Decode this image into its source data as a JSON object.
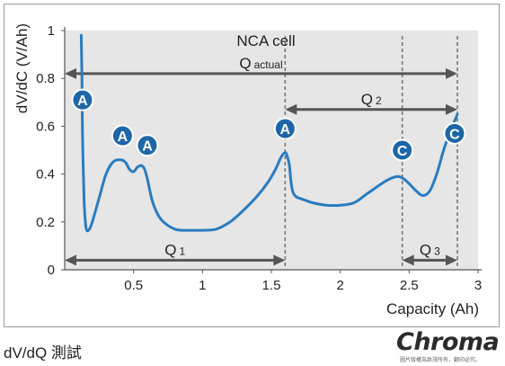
{
  "chart_data": {
    "type": "line",
    "title": "NCA cell",
    "xlabel": "Capacity (Ah)",
    "ylabel": "dV/dC (V/Ah)",
    "xlim": [
      0,
      3
    ],
    "ylim": [
      0,
      1
    ],
    "x_ticks": [
      0.5,
      1,
      1.5,
      2,
      2.5,
      3
    ],
    "x_tick_labels": [
      "0.5",
      "1",
      "1.5",
      "2",
      "2.5",
      "3"
    ],
    "y_ticks": [
      0,
      0.2,
      0.4,
      0.6,
      0.8,
      1
    ],
    "y_tick_labels": [
      "0",
      "0.2",
      "0.4",
      "0.6",
      "0.8",
      "1"
    ],
    "grid": false,
    "series": [
      {
        "x": [
          0.12,
          0.125,
          0.13,
          0.14,
          0.15,
          0.16,
          0.18,
          0.2,
          0.25,
          0.3,
          0.35,
          0.4,
          0.44,
          0.47,
          0.5,
          0.53,
          0.56,
          0.58,
          0.6,
          0.63,
          0.66,
          0.7,
          0.75,
          0.8,
          0.85,
          0.9,
          1.0,
          1.1,
          1.2,
          1.3,
          1.4,
          1.48,
          1.53,
          1.57,
          1.6,
          1.615,
          1.63,
          1.64,
          1.65,
          1.66,
          1.68,
          1.7,
          1.75,
          1.8,
          1.9,
          2.0,
          2.1,
          2.2,
          2.3,
          2.36,
          2.42,
          2.46,
          2.5,
          2.55,
          2.6,
          2.65,
          2.7,
          2.75,
          2.8,
          2.85
        ],
        "y": [
          0.98,
          0.8,
          0.55,
          0.3,
          0.2,
          0.165,
          0.17,
          0.2,
          0.3,
          0.4,
          0.45,
          0.46,
          0.45,
          0.42,
          0.41,
          0.43,
          0.435,
          0.42,
          0.38,
          0.3,
          0.25,
          0.21,
          0.185,
          0.17,
          0.165,
          0.165,
          0.165,
          0.17,
          0.2,
          0.25,
          0.31,
          0.37,
          0.42,
          0.47,
          0.49,
          0.475,
          0.44,
          0.38,
          0.34,
          0.32,
          0.305,
          0.3,
          0.29,
          0.28,
          0.27,
          0.27,
          0.28,
          0.32,
          0.36,
          0.38,
          0.39,
          0.38,
          0.36,
          0.33,
          0.31,
          0.33,
          0.4,
          0.5,
          0.58,
          0.65
        ]
      }
    ],
    "vertical_lines": [
      1.6,
      2.45,
      2.85
    ],
    "annotations": {
      "q_actual": {
        "label": "Q",
        "suffix": "actual",
        "x_range": [
          0,
          2.85
        ],
        "y": 0.82
      },
      "q2": {
        "label": "Q",
        "suffix": "2",
        "x_range": [
          1.6,
          2.85
        ],
        "y": 0.67
      },
      "q1": {
        "label": "Q",
        "suffix": "1",
        "x_range": [
          0,
          1.6
        ],
        "y": 0.04
      },
      "q3": {
        "label": "Q",
        "suffix": "3",
        "x_range": [
          2.45,
          2.85
        ],
        "y": 0.04
      }
    },
    "markers": [
      {
        "label": "A",
        "x": 0.13,
        "y": 0.71
      },
      {
        "label": "A",
        "x": 0.42,
        "y": 0.56
      },
      {
        "label": "A",
        "x": 0.6,
        "y": 0.52
      },
      {
        "label": "A",
        "x": 1.6,
        "y": 0.59
      },
      {
        "label": "C",
        "x": 2.45,
        "y": 0.5
      },
      {
        "label": "C",
        "x": 2.83,
        "y": 0.57
      }
    ],
    "colors": {
      "curve": "#2a7cc0",
      "marker_fill": "#1e66a8",
      "arrow": "#555555",
      "dashed": "#777777",
      "plot_bg": "#e6e6e6",
      "frame": "#9a9a9a"
    }
  },
  "caption": "dV/dQ 測試",
  "logo": {
    "text": "Chroma",
    "subtext": "圖片版權為致茂所有，翻印必究。"
  }
}
